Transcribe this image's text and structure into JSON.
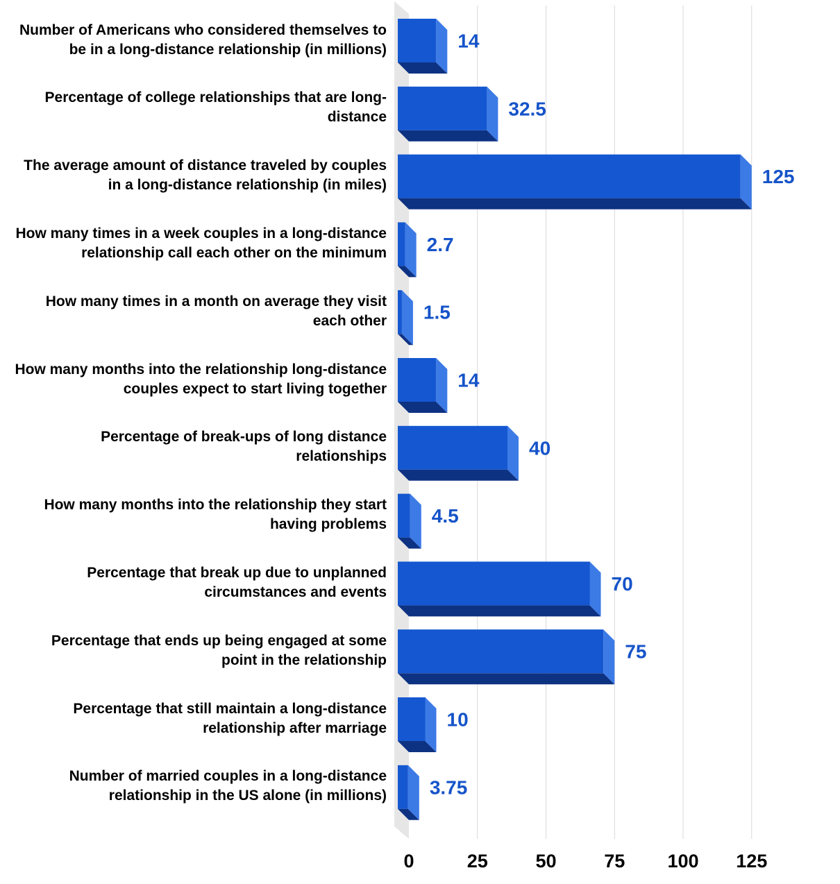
{
  "chart_data": {
    "type": "bar",
    "orientation": "horizontal",
    "categories": [
      "Number of Americans who considered themselves to be in a long-distance relationship (in millions)",
      "Percentage of college relationships that are long-distance",
      "The average amount of distance traveled by couples in a long-distance relationship (in miles)",
      "How many times in a week couples in a long-distance relationship call each other on the minimum",
      "How many times in a month on average they visit each other",
      "How many months into the relationship long-distance couples expect to start living together",
      "Percentage of break-ups of long distance relationships",
      "How many months into the relationship they start having problems",
      "Percentage that break up due to unplanned circumstances and events",
      "Percentage that ends up being engaged at some point in the relationship",
      "Percentage that still maintain a long-distance relationship after marriage",
      "Number of married couples in a long-distance relationship in the US alone (in millions)"
    ],
    "values": [
      14,
      32.5,
      125,
      2.7,
      1.5,
      14,
      40,
      4.5,
      70,
      75,
      10,
      3.75
    ],
    "value_labels": [
      "14",
      "32.5",
      "125",
      "2.7",
      "1.5",
      "14",
      "40",
      "4.5",
      "70",
      "75",
      "10",
      "3.75"
    ],
    "xticks": [
      "0",
      "25",
      "50",
      "75",
      "100",
      "125"
    ],
    "xtick_values": [
      0,
      25,
      50,
      75,
      100,
      125
    ],
    "xlim": [
      0,
      125
    ],
    "title": "",
    "xlabel": "",
    "ylabel": "",
    "grid": true,
    "legend": "none",
    "style": "3d",
    "colors": {
      "bar_front": "#1557d0",
      "bar_side": "#3c7ae6",
      "bar_bottom": "#0e3282",
      "value_label": "#1553c9",
      "grid": "#d9d9d9",
      "floor": "#e6e6e6",
      "category_text": "#000000",
      "tick_text": "#000000"
    }
  }
}
